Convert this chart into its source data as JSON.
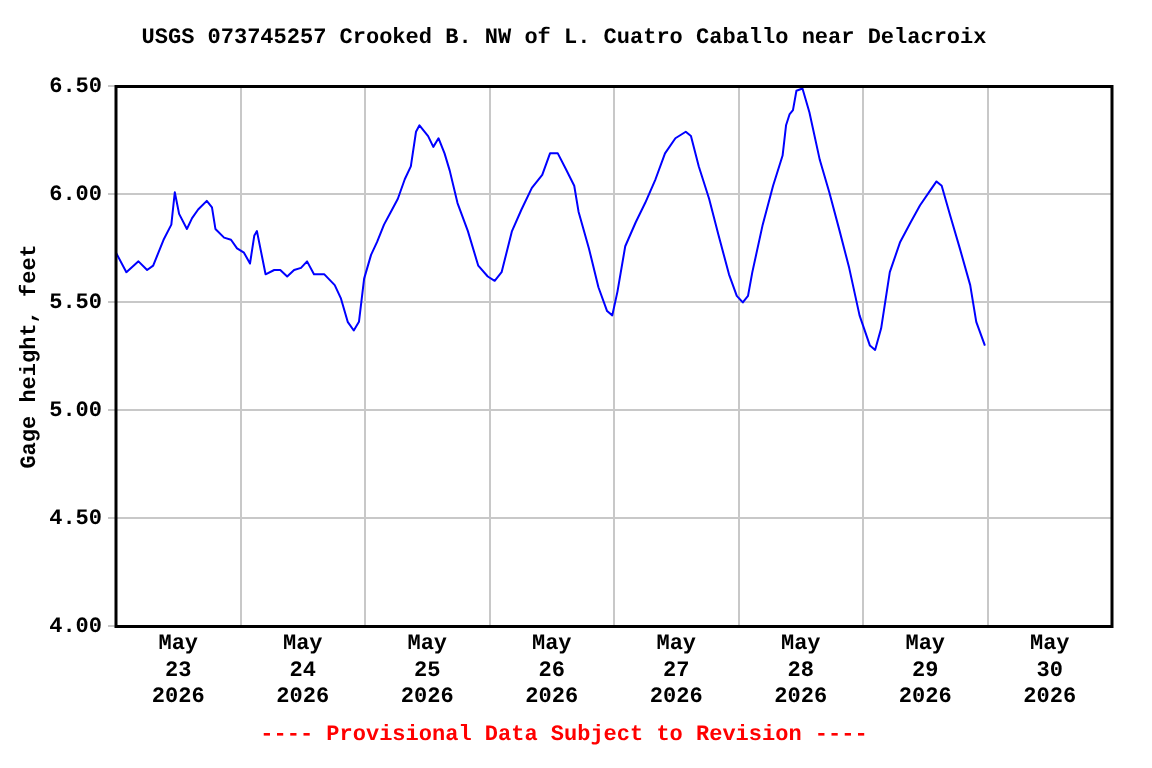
{
  "chart_data": {
    "type": "line",
    "title": "USGS 073745257 Crooked B. NW of L. Cuatro Caballo near Delacroix",
    "ylabel": "Gage height, feet",
    "annotations": [
      "---- Provisional Data Subject to Revision ----"
    ],
    "grid": true,
    "legend": false,
    "marker": "none",
    "line_style": "solid",
    "xlim": [
      "2026-05-23T00:00",
      "2026-05-31T00:00"
    ],
    "xticks": [
      {
        "value": "2026-05-23T00:00",
        "label": null
      },
      {
        "value": "2026-05-23T12:00",
        "label": "May 23 2026"
      },
      {
        "value": "2026-05-24T00:00",
        "label": null
      },
      {
        "value": "2026-05-24T12:00",
        "label": "May 24 2026"
      },
      {
        "value": "2026-05-25T00:00",
        "label": null
      },
      {
        "value": "2026-05-25T12:00",
        "label": "May 25 2026"
      },
      {
        "value": "2026-05-26T00:00",
        "label": null
      },
      {
        "value": "2026-05-26T12:00",
        "label": "May 26 2026"
      },
      {
        "value": "2026-05-27T00:00",
        "label": null
      },
      {
        "value": "2026-05-27T12:00",
        "label": "May 27 2026"
      },
      {
        "value": "2026-05-28T00:00",
        "label": null
      },
      {
        "value": "2026-05-28T12:00",
        "label": "May 28 2026"
      },
      {
        "value": "2026-05-29T00:00",
        "label": null
      },
      {
        "value": "2026-05-29T12:00",
        "label": "May 29 2026"
      },
      {
        "value": "2026-05-30T00:00",
        "label": null
      },
      {
        "value": "2026-05-30T12:00",
        "label": "May 30 2026"
      },
      {
        "value": "2026-05-31T00:00",
        "label": null
      }
    ],
    "ylim": [
      4.0,
      6.5
    ],
    "yticks": [
      {
        "value": 4.0,
        "label": "4.00"
      },
      {
        "value": 4.5,
        "label": "4.50"
      },
      {
        "value": 5.0,
        "label": "5.00"
      },
      {
        "value": 5.5,
        "label": "5.50"
      },
      {
        "value": 6.0,
        "label": "6.00"
      },
      {
        "value": 6.5,
        "label": "6.50"
      }
    ],
    "series": [
      {
        "color": "#0000ff",
        "x": [
          "2026-05-23T00:00",
          "2026-05-23T02:00",
          "2026-05-23T04:20",
          "2026-05-23T06:00",
          "2026-05-23T07:10",
          "2026-05-23T09:10",
          "2026-05-23T10:40",
          "2026-05-23T11:20",
          "2026-05-23T12:10",
          "2026-05-23T13:40",
          "2026-05-23T14:40",
          "2026-05-23T15:50",
          "2026-05-23T17:30",
          "2026-05-23T18:30",
          "2026-05-23T19:10",
          "2026-05-23T20:50",
          "2026-05-23T22:10",
          "2026-05-23T23:20",
          "2026-05-24T00:40",
          "2026-05-24T01:50",
          "2026-05-24T02:40",
          "2026-05-24T03:10",
          "2026-05-24T04:50",
          "2026-05-24T06:30",
          "2026-05-24T07:40",
          "2026-05-24T09:00",
          "2026-05-24T10:20",
          "2026-05-24T11:40",
          "2026-05-24T12:50",
          "2026-05-24T14:10",
          "2026-05-24T16:10",
          "2026-05-24T18:10",
          "2026-05-24T19:20",
          "2026-05-24T20:40",
          "2026-05-24T21:50",
          "2026-05-24T22:50",
          "2026-05-24T23:50",
          "2026-05-25T01:10",
          "2026-05-25T02:20",
          "2026-05-25T03:40",
          "2026-05-25T05:00",
          "2026-05-25T06:20",
          "2026-05-25T07:40",
          "2026-05-25T08:50",
          "2026-05-25T09:50",
          "2026-05-25T10:30",
          "2026-05-25T12:10",
          "2026-05-25T13:10",
          "2026-05-25T14:10",
          "2026-05-25T15:20",
          "2026-05-25T16:20",
          "2026-05-25T17:50",
          "2026-05-25T19:50",
          "2026-05-25T21:50",
          "2026-05-25T23:40",
          "2026-05-26T01:00",
          "2026-05-26T02:20",
          "2026-05-26T04:20",
          "2026-05-26T06:10",
          "2026-05-26T08:10",
          "2026-05-26T10:10",
          "2026-05-26T11:40",
          "2026-05-26T13:10",
          "2026-05-26T14:40",
          "2026-05-26T16:20",
          "2026-05-26T17:10",
          "2026-05-26T19:10",
          "2026-05-26T21:00",
          "2026-05-26T22:40",
          "2026-05-26T23:40",
          "2026-05-27T00:40",
          "2026-05-27T02:10",
          "2026-05-27T04:10",
          "2026-05-27T06:00",
          "2026-05-27T08:00",
          "2026-05-27T09:50",
          "2026-05-27T11:50",
          "2026-05-27T13:50",
          "2026-05-27T14:50",
          "2026-05-27T16:20",
          "2026-05-27T18:20",
          "2026-05-27T20:10",
          "2026-05-27T22:10",
          "2026-05-27T23:40",
          "2026-05-28T00:50",
          "2026-05-28T01:50",
          "2026-05-28T02:40",
          "2026-05-28T04:40",
          "2026-05-28T06:40",
          "2026-05-28T08:30",
          "2026-05-28T09:10",
          "2026-05-28T09:50",
          "2026-05-28T10:30",
          "2026-05-28T11:10",
          "2026-05-28T12:20",
          "2026-05-28T13:40",
          "2026-05-28T15:40",
          "2026-05-28T17:30",
          "2026-05-28T19:30",
          "2026-05-28T21:20",
          "2026-05-28T23:20",
          "2026-05-29T01:20",
          "2026-05-29T02:20",
          "2026-05-29T03:30",
          "2026-05-29T05:10",
          "2026-05-29T07:10",
          "2026-05-29T09:10",
          "2026-05-29T11:00",
          "2026-05-29T13:00",
          "2026-05-29T14:10",
          "2026-05-29T15:10",
          "2026-05-29T16:50",
          "2026-05-29T18:40",
          "2026-05-29T20:40",
          "2026-05-29T21:50",
          "2026-05-29T23:30"
        ],
        "values": [
          5.73,
          5.64,
          5.69,
          5.65,
          5.67,
          5.79,
          5.86,
          6.01,
          5.91,
          5.84,
          5.89,
          5.93,
          5.97,
          5.94,
          5.84,
          5.8,
          5.79,
          5.75,
          5.73,
          5.68,
          5.81,
          5.83,
          5.63,
          5.65,
          5.65,
          5.62,
          5.65,
          5.66,
          5.69,
          5.63,
          5.63,
          5.58,
          5.52,
          5.41,
          5.37,
          5.41,
          5.61,
          5.72,
          5.78,
          5.86,
          5.92,
          5.98,
          6.07,
          6.13,
          6.29,
          6.32,
          6.27,
          6.22,
          6.26,
          6.19,
          6.11,
          5.96,
          5.83,
          5.67,
          5.62,
          5.6,
          5.64,
          5.83,
          5.93,
          6.03,
          6.09,
          6.19,
          6.19,
          6.12,
          6.04,
          5.92,
          5.75,
          5.57,
          5.46,
          5.44,
          5.55,
          5.76,
          5.87,
          5.96,
          6.07,
          6.19,
          6.26,
          6.29,
          6.27,
          6.13,
          5.98,
          5.81,
          5.63,
          5.53,
          5.5,
          5.53,
          5.64,
          5.86,
          6.04,
          6.18,
          6.32,
          6.37,
          6.39,
          6.48,
          6.49,
          6.38,
          6.16,
          6.01,
          5.83,
          5.66,
          5.44,
          5.3,
          5.28,
          5.38,
          5.64,
          5.78,
          5.87,
          5.95,
          6.02,
          6.06,
          6.04,
          5.9,
          5.75,
          5.58,
          5.41,
          5.3
        ]
      }
    ]
  }
}
